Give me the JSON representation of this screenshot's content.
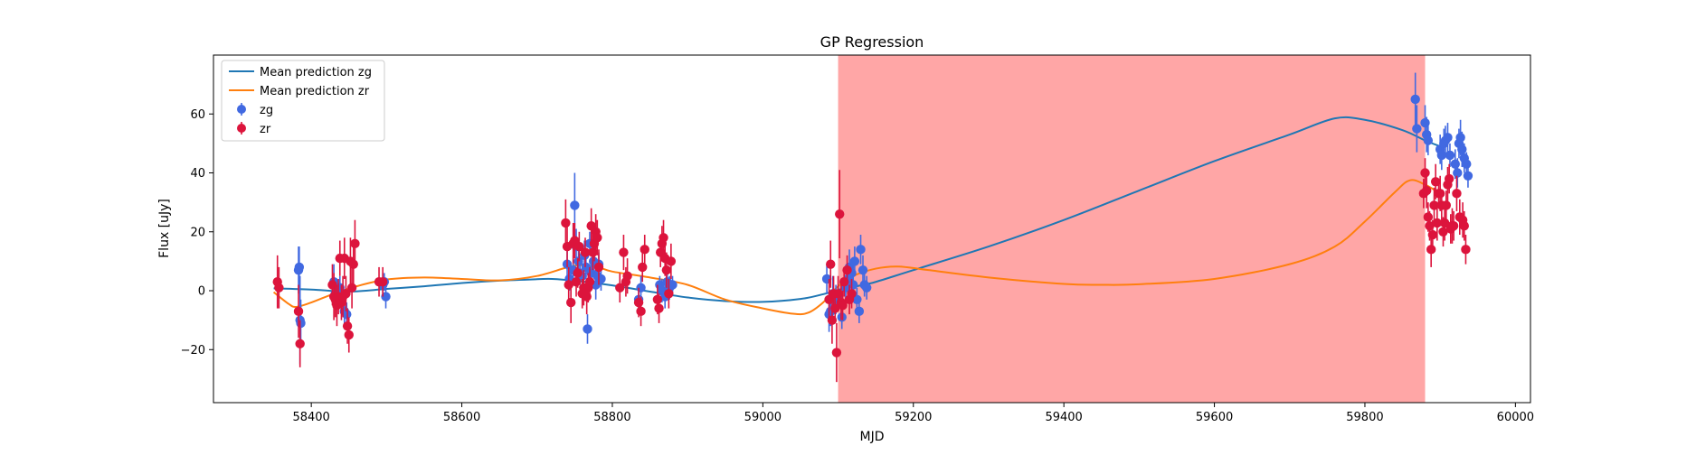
{
  "chart_data": {
    "type": "scatter",
    "title": "GP Regression",
    "xlabel": "MJD",
    "ylabel": "Flux [uJy]",
    "xlim": [
      58270,
      60020
    ],
    "ylim": [
      -38,
      80
    ],
    "x_ticks": [
      58400,
      58600,
      58800,
      59000,
      59200,
      59400,
      59600,
      59800,
      60000
    ],
    "y_ticks": [
      -20,
      0,
      20,
      40,
      60
    ],
    "grid": false,
    "legend_position": "top-left",
    "shaded_region": {
      "x_start": 59100,
      "x_end": 59880,
      "color": "#ffa6a6"
    },
    "lines": [
      {
        "name": "Mean prediction zg",
        "color": "#1f77b4",
        "points": [
          [
            58350,
            0.8
          ],
          [
            58400,
            0.4
          ],
          [
            58450,
            -0.3
          ],
          [
            58500,
            0.6
          ],
          [
            58550,
            1.5
          ],
          [
            58600,
            2.6
          ],
          [
            58650,
            3.4
          ],
          [
            58700,
            3.9
          ],
          [
            58720,
            4.0
          ],
          [
            58750,
            3.4
          ],
          [
            58800,
            1.8
          ],
          [
            58850,
            -0.3
          ],
          [
            58900,
            -2.3
          ],
          [
            58950,
            -3.5
          ],
          [
            59000,
            -3.8
          ],
          [
            59050,
            -2.8
          ],
          [
            59080,
            -1.2
          ],
          [
            59100,
            0.3
          ],
          [
            59130,
            1.8
          ],
          [
            59150,
            3.0
          ],
          [
            59200,
            7.0
          ],
          [
            59300,
            15.0
          ],
          [
            59400,
            24.0
          ],
          [
            59500,
            34.0
          ],
          [
            59600,
            44.0
          ],
          [
            59700,
            53.0
          ],
          [
            59760,
            58.5
          ],
          [
            59800,
            58.0
          ],
          [
            59850,
            54.5
          ],
          [
            59880,
            51.0
          ],
          [
            59900,
            49.0
          ]
        ]
      },
      {
        "name": "Mean prediction zr",
        "color": "#ff7f0e",
        "points": [
          [
            58350,
            -0.5
          ],
          [
            58370,
            -4.5
          ],
          [
            58380,
            -5.5
          ],
          [
            58400,
            -4.0
          ],
          [
            58430,
            -1.0
          ],
          [
            58460,
            1.5
          ],
          [
            58500,
            3.8
          ],
          [
            58550,
            4.5
          ],
          [
            58600,
            4.0
          ],
          [
            58650,
            3.5
          ],
          [
            58700,
            5.0
          ],
          [
            58750,
            8.5
          ],
          [
            58780,
            8.0
          ],
          [
            58800,
            6.5
          ],
          [
            58850,
            4.5
          ],
          [
            58900,
            2.0
          ],
          [
            58950,
            -3.0
          ],
          [
            59000,
            -6.0
          ],
          [
            59040,
            -7.8
          ],
          [
            59060,
            -7.5
          ],
          [
            59080,
            -4.0
          ],
          [
            59100,
            1.5
          ],
          [
            59120,
            5.0
          ],
          [
            59150,
            7.5
          ],
          [
            59180,
            8.2
          ],
          [
            59220,
            7.0
          ],
          [
            59300,
            4.5
          ],
          [
            59400,
            2.3
          ],
          [
            59450,
            2.0
          ],
          [
            59500,
            2.2
          ],
          [
            59600,
            4.0
          ],
          [
            59700,
            9.0
          ],
          [
            59760,
            15.0
          ],
          [
            59800,
            23.5
          ],
          [
            59840,
            33.5
          ],
          [
            59860,
            37.5
          ],
          [
            59880,
            36.0
          ],
          [
            59900,
            33.0
          ]
        ]
      }
    ],
    "series": [
      {
        "name": "zg",
        "color": "#4169e1",
        "points": [
          [
            58383,
            7,
            8
          ],
          [
            58384,
            8,
            7
          ],
          [
            58385,
            -10,
            15
          ],
          [
            58386,
            -11,
            8
          ],
          [
            58430,
            3,
            6
          ],
          [
            58432,
            -1,
            5
          ],
          [
            58438,
            1,
            4
          ],
          [
            58444,
            -7,
            6
          ],
          [
            58447,
            -8,
            4
          ],
          [
            58495,
            2,
            4
          ],
          [
            58497,
            3,
            3
          ],
          [
            58499,
            -2,
            4
          ],
          [
            58740,
            9,
            6
          ],
          [
            58743,
            4,
            4
          ],
          [
            58745,
            3,
            5
          ],
          [
            58748,
            7,
            5
          ],
          [
            58750,
            29,
            11
          ],
          [
            58752,
            15,
            6
          ],
          [
            58755,
            10,
            4
          ],
          [
            58757,
            6,
            4
          ],
          [
            58760,
            5,
            5
          ],
          [
            58763,
            12,
            5
          ],
          [
            58765,
            8,
            4
          ],
          [
            58767,
            -13,
            5
          ],
          [
            58770,
            16,
            4
          ],
          [
            58772,
            6,
            4
          ],
          [
            58775,
            10,
            4
          ],
          [
            58778,
            2,
            5
          ],
          [
            58780,
            5,
            4
          ],
          [
            58782,
            9,
            4
          ],
          [
            58785,
            4,
            4
          ],
          [
            58835,
            -3,
            4
          ],
          [
            58838,
            1,
            4
          ],
          [
            58863,
            2,
            3
          ],
          [
            58866,
            0,
            4
          ],
          [
            58870,
            -2,
            4
          ],
          [
            58873,
            3,
            3
          ],
          [
            58876,
            1,
            4
          ],
          [
            58880,
            2,
            3
          ],
          [
            59085,
            4,
            5
          ],
          [
            59088,
            -8,
            6
          ],
          [
            59090,
            -7,
            5
          ],
          [
            59093,
            -1,
            6
          ],
          [
            59097,
            -3,
            5
          ],
          [
            59100,
            -2,
            4
          ],
          [
            59105,
            -9,
            4
          ],
          [
            59110,
            1,
            4
          ],
          [
            59113,
            4,
            4
          ],
          [
            59115,
            8,
            6
          ],
          [
            59118,
            6,
            5
          ],
          [
            59120,
            2,
            4
          ],
          [
            59122,
            10,
            5
          ],
          [
            59125,
            -3,
            4
          ],
          [
            59128,
            -7,
            4
          ],
          [
            59130,
            14,
            5
          ],
          [
            59133,
            7,
            5
          ],
          [
            59135,
            2,
            4
          ],
          [
            59138,
            1,
            4
          ],
          [
            59867,
            65,
            9
          ],
          [
            59869,
            55,
            8
          ],
          [
            59880,
            57,
            6
          ],
          [
            59882,
            53,
            6
          ],
          [
            59884,
            51,
            5
          ],
          [
            59900,
            48,
            5
          ],
          [
            59902,
            46,
            5
          ],
          [
            59905,
            50,
            5
          ],
          [
            59907,
            51,
            5
          ],
          [
            59910,
            52,
            5
          ],
          [
            59913,
            46,
            4
          ],
          [
            59920,
            43,
            5
          ],
          [
            59923,
            40,
            5
          ],
          [
            59925,
            50,
            5
          ],
          [
            59927,
            52,
            6
          ],
          [
            59929,
            48,
            6
          ],
          [
            59932,
            45,
            5
          ],
          [
            59935,
            43,
            4
          ],
          [
            59937,
            39,
            4
          ]
        ]
      },
      {
        "name": "zr",
        "color": "#dc143c",
        "points": [
          [
            58355,
            3,
            9
          ],
          [
            58357,
            1,
            7
          ],
          [
            58383,
            -7,
            9
          ],
          [
            58385,
            -18,
            8
          ],
          [
            58428,
            2,
            7
          ],
          [
            58430,
            -2,
            8
          ],
          [
            58432,
            -3,
            6
          ],
          [
            58434,
            -5,
            7
          ],
          [
            58436,
            -2,
            6
          ],
          [
            58438,
            11,
            6
          ],
          [
            58440,
            -4,
            6
          ],
          [
            58442,
            -2,
            7
          ],
          [
            58444,
            11,
            7
          ],
          [
            58446,
            -1,
            6
          ],
          [
            58448,
            -12,
            6
          ],
          [
            58450,
            -15,
            6
          ],
          [
            58452,
            10,
            8
          ],
          [
            58454,
            1,
            7
          ],
          [
            58456,
            9,
            7
          ],
          [
            58458,
            16,
            8
          ],
          [
            58490,
            3,
            5
          ],
          [
            58495,
            3,
            5
          ],
          [
            58738,
            23,
            8
          ],
          [
            58740,
            15,
            7
          ],
          [
            58742,
            2,
            6
          ],
          [
            58745,
            -4,
            7
          ],
          [
            58748,
            16,
            7
          ],
          [
            58750,
            17,
            6
          ],
          [
            58752,
            3,
            5
          ],
          [
            58754,
            6,
            5
          ],
          [
            58756,
            15,
            5
          ],
          [
            58760,
            -1,
            5
          ],
          [
            58762,
            1,
            6
          ],
          [
            58764,
            13,
            5
          ],
          [
            58766,
            -2,
            6
          ],
          [
            58768,
            1,
            5
          ],
          [
            58770,
            3,
            5
          ],
          [
            58772,
            22,
            6
          ],
          [
            58774,
            13,
            6
          ],
          [
            58776,
            16,
            6
          ],
          [
            58778,
            20,
            6
          ],
          [
            58780,
            18,
            6
          ],
          [
            58782,
            8,
            6
          ],
          [
            58810,
            1,
            5
          ],
          [
            58815,
            13,
            6
          ],
          [
            58818,
            3,
            5
          ],
          [
            58820,
            5,
            6
          ],
          [
            58835,
            -4,
            5
          ],
          [
            58838,
            -7,
            5
          ],
          [
            58840,
            8,
            5
          ],
          [
            58843,
            14,
            5
          ],
          [
            58860,
            -3,
            5
          ],
          [
            58862,
            -6,
            5
          ],
          [
            58864,
            13,
            5
          ],
          [
            58866,
            16,
            6
          ],
          [
            58868,
            18,
            6
          ],
          [
            58870,
            11,
            6
          ],
          [
            58872,
            7,
            6
          ],
          [
            58875,
            -1,
            5
          ],
          [
            58878,
            10,
            6
          ],
          [
            59088,
            -3,
            7
          ],
          [
            59090,
            9,
            8
          ],
          [
            59092,
            -10,
            8
          ],
          [
            59094,
            -1,
            6
          ],
          [
            59096,
            -6,
            5
          ],
          [
            59098,
            -21,
            10
          ],
          [
            59100,
            -1,
            6
          ],
          [
            59102,
            26,
            15
          ],
          [
            59104,
            -4,
            6
          ],
          [
            59106,
            -5,
            5
          ],
          [
            59108,
            3,
            5
          ],
          [
            59112,
            7,
            5
          ],
          [
            59115,
            -3,
            5
          ],
          [
            59118,
            -1,
            5
          ],
          [
            59878,
            33,
            5
          ],
          [
            59880,
            40,
            5
          ],
          [
            59882,
            34,
            6
          ],
          [
            59884,
            25,
            5
          ],
          [
            59886,
            22,
            5
          ],
          [
            59888,
            14,
            6
          ],
          [
            59890,
            19,
            5
          ],
          [
            59892,
            29,
            6
          ],
          [
            59894,
            37,
            6
          ],
          [
            59896,
            23,
            6
          ],
          [
            59898,
            33,
            5
          ],
          [
            59900,
            33,
            6
          ],
          [
            59902,
            29,
            5
          ],
          [
            59904,
            20,
            5
          ],
          [
            59906,
            23,
            6
          ],
          [
            59908,
            29,
            5
          ],
          [
            59910,
            36,
            6
          ],
          [
            59912,
            38,
            5
          ],
          [
            59914,
            21,
            5
          ],
          [
            59916,
            22,
            6
          ],
          [
            59918,
            22,
            5
          ],
          [
            59922,
            33,
            6
          ],
          [
            59926,
            25,
            6
          ],
          [
            59930,
            24,
            6
          ],
          [
            59932,
            22,
            5
          ],
          [
            59934,
            14,
            5
          ]
        ]
      }
    ]
  }
}
